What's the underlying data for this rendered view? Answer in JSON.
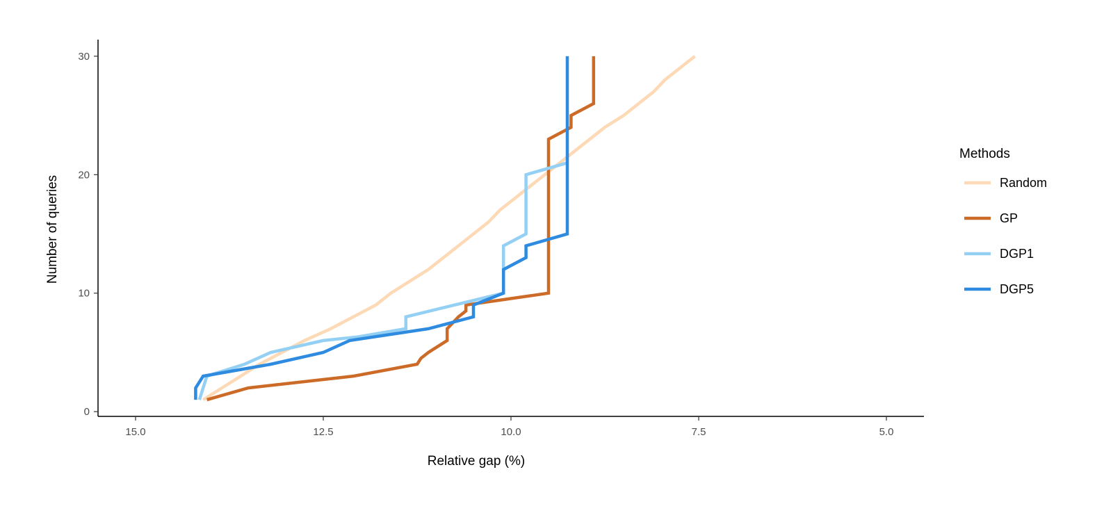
{
  "chart_data": {
    "type": "line",
    "title": "",
    "xlabel": "Relative gap (%)",
    "ylabel": "Number of queries",
    "xlim": [
      15.5,
      4.5
    ],
    "ylim": [
      -0.4,
      31.4
    ],
    "x_reversed": true,
    "x_ticks": [
      15.0,
      12.5,
      10.0,
      7.5,
      5.0
    ],
    "x_tick_labels": [
      "15.0",
      "12.5",
      "10.0",
      "7.5",
      "5.0"
    ],
    "y_ticks": [
      0,
      10,
      20,
      30
    ],
    "y_tick_labels": [
      "0",
      "10",
      "20",
      "30"
    ],
    "grid": false,
    "legend": {
      "title": "Methods",
      "position": "right"
    },
    "series": [
      {
        "name": "Random",
        "color": "#fdd9b5",
        "points": [
          [
            14.1,
            1
          ],
          [
            13.85,
            2
          ],
          [
            13.6,
            3
          ],
          [
            13.35,
            4
          ],
          [
            13.05,
            5
          ],
          [
            12.75,
            6
          ],
          [
            12.4,
            7
          ],
          [
            12.1,
            8
          ],
          [
            11.8,
            9
          ],
          [
            11.6,
            10
          ],
          [
            11.35,
            11
          ],
          [
            11.1,
            12
          ],
          [
            10.9,
            13
          ],
          [
            10.7,
            14
          ],
          [
            10.5,
            15
          ],
          [
            10.3,
            16
          ],
          [
            10.15,
            17
          ],
          [
            9.95,
            18
          ],
          [
            9.75,
            19
          ],
          [
            9.55,
            20
          ],
          [
            9.35,
            21
          ],
          [
            9.15,
            22
          ],
          [
            8.95,
            23
          ],
          [
            8.75,
            24
          ],
          [
            8.5,
            25
          ],
          [
            8.3,
            26
          ],
          [
            8.1,
            27
          ],
          [
            7.95,
            28
          ],
          [
            7.75,
            29
          ],
          [
            7.55,
            30
          ]
        ]
      },
      {
        "name": "GP",
        "color": "#cc6a28",
        "points": [
          [
            14.05,
            1
          ],
          [
            13.5,
            2
          ],
          [
            12.1,
            3
          ],
          [
            11.25,
            4
          ],
          [
            11.2,
            4.5
          ],
          [
            11.1,
            5
          ],
          [
            10.85,
            6
          ],
          [
            10.85,
            7
          ],
          [
            10.7,
            8
          ],
          [
            10.6,
            8.5
          ],
          [
            10.6,
            9
          ],
          [
            9.5,
            10
          ],
          [
            9.5,
            23
          ],
          [
            9.2,
            24
          ],
          [
            9.2,
            25
          ],
          [
            8.9,
            26
          ],
          [
            8.9,
            30
          ]
        ]
      },
      {
        "name": "DGP1",
        "color": "#94d0f4",
        "points": [
          [
            14.15,
            1
          ],
          [
            14.1,
            2
          ],
          [
            14.05,
            3
          ],
          [
            13.55,
            4
          ],
          [
            13.2,
            5
          ],
          [
            12.5,
            6
          ],
          [
            12.05,
            6.3
          ],
          [
            11.4,
            7
          ],
          [
            11.4,
            8
          ],
          [
            10.1,
            10
          ],
          [
            10.1,
            14
          ],
          [
            9.8,
            15
          ],
          [
            9.8,
            20
          ],
          [
            9.25,
            21
          ]
        ]
      },
      {
        "name": "DGP5",
        "color": "#2e8be0",
        "points": [
          [
            14.2,
            1
          ],
          [
            14.2,
            2
          ],
          [
            14.1,
            3
          ],
          [
            13.2,
            4
          ],
          [
            12.5,
            5
          ],
          [
            12.15,
            6
          ],
          [
            11.1,
            7
          ],
          [
            10.5,
            8
          ],
          [
            10.5,
            9
          ],
          [
            10.1,
            10
          ],
          [
            10.1,
            12
          ],
          [
            9.8,
            13
          ],
          [
            9.8,
            14
          ],
          [
            9.25,
            15
          ],
          [
            9.25,
            30
          ]
        ]
      }
    ]
  }
}
